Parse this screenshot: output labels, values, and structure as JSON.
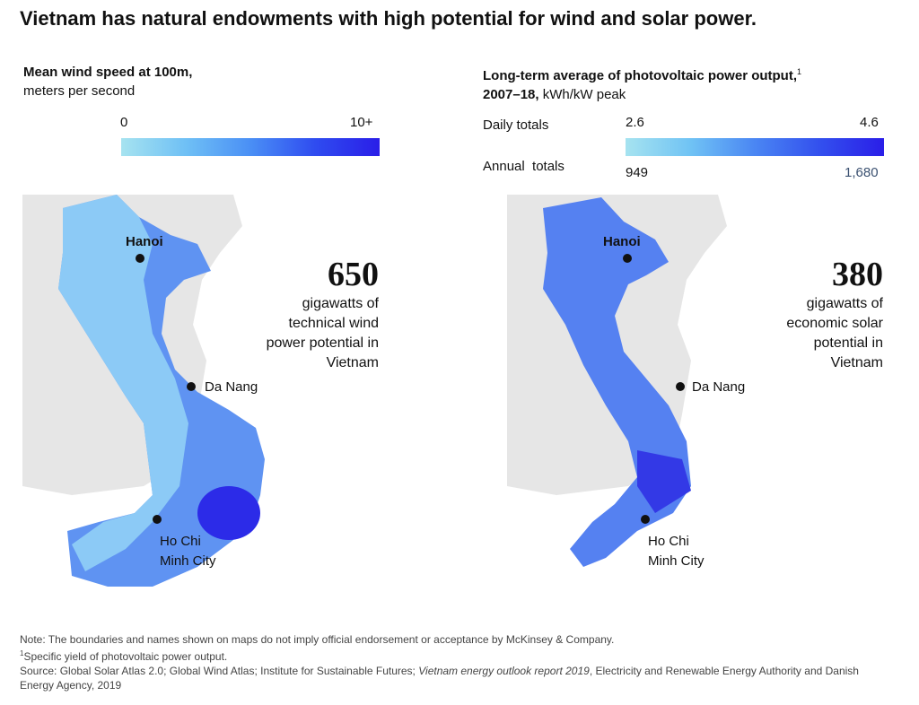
{
  "title": "Vietnam has natural endowments with high potential for wind and solar power.",
  "maps": [
    {
      "heading": "Mean wind speed at 100m,",
      "subheading": "meters per second",
      "scale": {
        "min_label": "0",
        "max_label": "10+"
      },
      "stat": {
        "value": "650",
        "lines": [
          "gigawatts of",
          "technical wind",
          "power potential in",
          "Vietnam"
        ]
      },
      "cities": [
        {
          "lines": [
            "Hanoi"
          ]
        },
        {
          "lines": [
            "Da Nang"
          ]
        },
        {
          "lines": [
            "Ho Chi",
            "Minh City"
          ]
        }
      ]
    },
    {
      "heading": "Long-term average of photovoltaic power output,",
      "footnote_marker": "1",
      "heading_line2": "2007–18,",
      "subheading": "kWh/kW peak",
      "scale": {
        "rows": [
          {
            "label": "Daily totals",
            "min_label": "2.6",
            "max_label": "4.6"
          },
          {
            "label": "Annual  totals",
            "min_label": "949",
            "max_label": "1,680"
          }
        ]
      },
      "stat": {
        "value": "380",
        "lines": [
          "gigawatts of",
          "economic solar",
          "potential in",
          "Vietnam"
        ]
      },
      "cities": [
        {
          "lines": [
            "Hanoi"
          ]
        },
        {
          "lines": [
            "Da Nang"
          ]
        },
        {
          "lines": [
            "Ho Chi",
            "Minh City"
          ]
        }
      ]
    }
  ],
  "notes": {
    "note": "Note: The boundaries and names shown on maps do not imply official endorsement or acceptance by McKinsey & Company.",
    "footnote_marker": "1",
    "footnote": "Specific yield of photovoltaic power output.",
    "source_parts": [
      "Source: Global Solar Atlas 2.0; Global Wind Atlas; Institute for Sustainable Futures; ",
      "Vietnam energy outlook report 2019",
      ", Electricity and Renewable Energy Authority and Danish Energy Agency, 2019"
    ]
  }
}
